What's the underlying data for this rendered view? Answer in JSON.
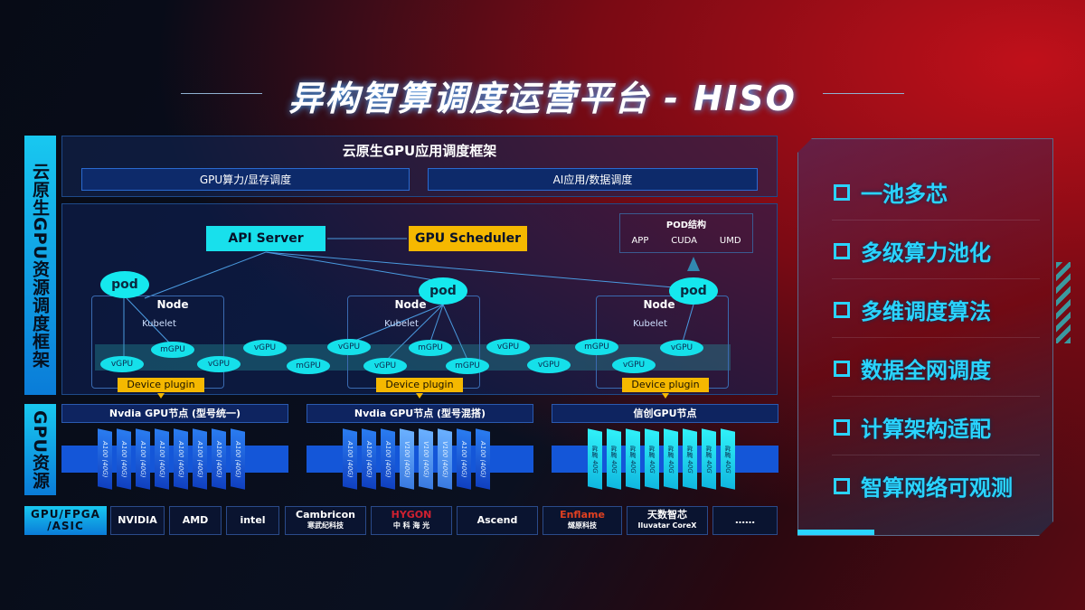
{
  "title": "异构智算调度运营平台 - HISO",
  "side_labels": {
    "framework": "云原生GPU资源调度框架",
    "resources": "GPU资源",
    "chips": "GPU/FPGA /ASIC"
  },
  "app_framework": {
    "title": "云原生GPU应用调度框架",
    "items": [
      "GPU算力/显存调度",
      "AI应用/数据调度"
    ]
  },
  "api_server": "API Server",
  "gpu_scheduler": "GPU Scheduler",
  "pod_structure": {
    "title": "POD结构",
    "items": [
      "APP",
      "CUDA",
      "UMD"
    ]
  },
  "nodes": [
    {
      "label": "Node",
      "kubelet": "Kubelet",
      "pod": "pod",
      "plugin": "Device plugin"
    },
    {
      "label": "Node",
      "kubelet": "Kubelet",
      "pod": "pod",
      "plugin": "Device plugin"
    },
    {
      "label": "Node",
      "kubelet": "Kubelet",
      "pod": "pod",
      "plugin": "Device plugin"
    }
  ],
  "gpu_units": [
    "vGPU",
    "mGPU",
    "vGPU",
    "vGPU",
    "mGPU",
    "vGPU",
    "mGPU",
    "vGPU",
    "mGPU",
    "vGPU",
    "vGPU",
    "mGPU",
    "vGPU",
    "vGPU"
  ],
  "gpu_nodes": [
    {
      "title": "Nvdia GPU节点 (型号统一)",
      "cards": [
        "A100 (40G)",
        "A100 (40G)",
        "A100 (40G)",
        "A100 (40G)",
        "A100 (40G)",
        "A100 (40G)",
        "A100 (40G)",
        "A100 (40G)"
      ]
    },
    {
      "title": "Nvdia GPU节点 (型号混搭)",
      "cards": [
        "A100 (40G)",
        "A100 (40G)",
        "A100 (40G)",
        "V100 (40G)",
        "V100 (40G)",
        "V100 (40G)",
        "A100 (40G)",
        "A100 (40G)"
      ]
    },
    {
      "title": "信创GPU节点",
      "cards": [
        "昇腾 40G",
        "昇腾 40G",
        "昇腾 40G",
        "昇腾 40G",
        "昇腾 40G",
        "昇腾 40G",
        "昇腾 40G",
        "昇腾 40G"
      ]
    }
  ],
  "vendors": [
    {
      "name": "NVIDIA"
    },
    {
      "name": "AMD"
    },
    {
      "name": "intel"
    },
    {
      "name": "Cambricon",
      "sub": "寒武纪科技"
    },
    {
      "name": "HYGON",
      "sub": "中 科 海 光"
    },
    {
      "name": "Ascend"
    },
    {
      "name": "Enflame",
      "sub": "燧原科技"
    },
    {
      "name": "天数智芯",
      "sub": "Iluvatar CoreX"
    },
    {
      "name": "……"
    }
  ],
  "features": [
    "一池多芯",
    "多级算力池化",
    "多维调度算法",
    "数据全网调度",
    "计算架构适配",
    "智算网络可观测"
  ],
  "colors": {
    "cyan": "#15e0ea",
    "orange": "#f5b800",
    "blue": "#1456d8",
    "feature_text": "#2ad4ff"
  }
}
